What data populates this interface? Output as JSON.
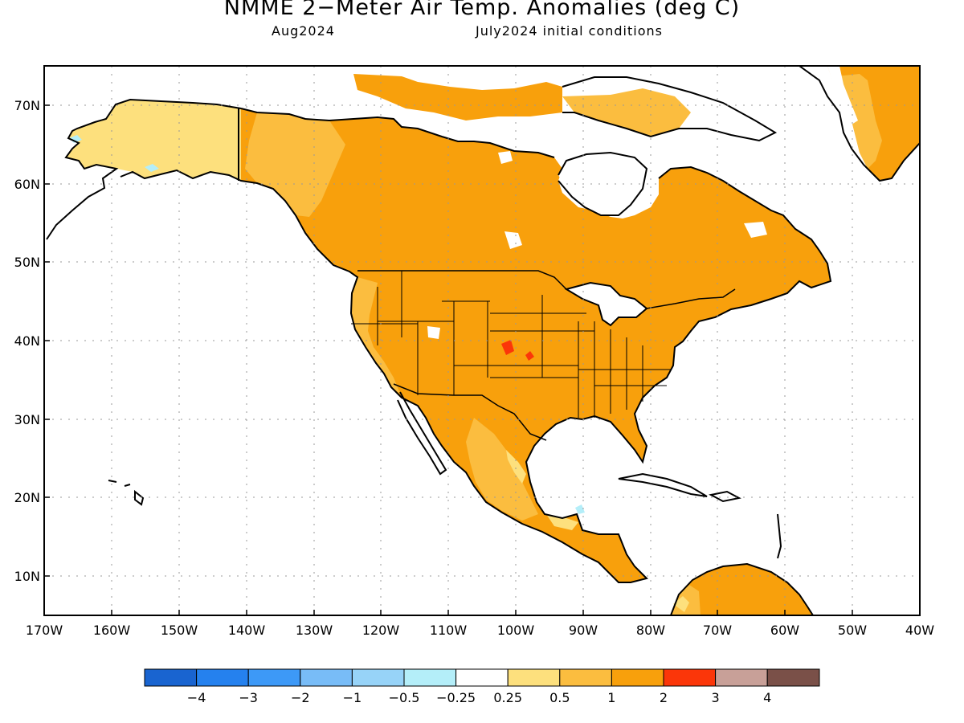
{
  "title": "NMME 2−Meter Air Temp. Anomalies (deg C)",
  "subtitle_left": "Aug2024",
  "subtitle_right": "July2024 initial conditions",
  "map": {
    "lon_range": [
      -170,
      -40
    ],
    "lat_range": [
      5,
      75
    ],
    "lat_ticks": [
      "70N",
      "60N",
      "50N",
      "40N",
      "30N",
      "20N",
      "10N"
    ],
    "lon_ticks": [
      "170W",
      "160W",
      "150W",
      "140W",
      "130W",
      "120W",
      "110W",
      "100W",
      "90W",
      "80W",
      "70W",
      "60W",
      "50W",
      "40W"
    ],
    "gridlines": "dotted",
    "colors": {
      "land_dominant": "#f8a00c",
      "land_secondary": "#fbbd3f",
      "land_weak": "#fde07d",
      "land_neutral": "#ffffff",
      "cold_spot": "#b4eef9",
      "hot_spot": "#fb3609",
      "coastline": "#000000"
    }
  },
  "colorbar": {
    "colors": [
      "#1964d0",
      "#2581ee",
      "#3d99f7",
      "#78bcf7",
      "#97d3f8",
      "#b4eef9",
      "#ffffff",
      "#fde07d",
      "#fbbd3f",
      "#f8a00c",
      "#fb3609",
      "#c8a098",
      "#7a5048"
    ],
    "labels": [
      "−4",
      "−3",
      "−2",
      "−1",
      "−0.5",
      "−0.25",
      "0.25",
      "0.5",
      "1",
      "2",
      "3",
      "4"
    ]
  }
}
